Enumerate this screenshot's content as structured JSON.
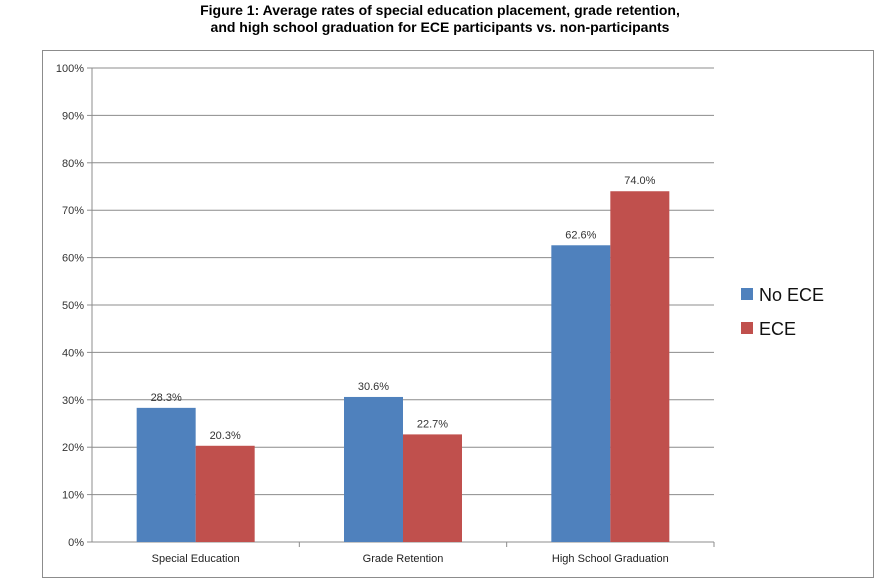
{
  "chart_data": {
    "type": "bar",
    "title_line1": "Figure 1: Average rates of special education placement, grade retention,",
    "title_line2": "and high school graduation for ECE participants vs. non-participants",
    "categories": [
      "Special Education",
      "Grade Retention",
      "High School Graduation"
    ],
    "series": [
      {
        "name": "No ECE",
        "color": "#4f81bd",
        "values": [
          28.3,
          30.6,
          62.6
        ],
        "labels": [
          "28.3%",
          "30.6%",
          "62.6%"
        ]
      },
      {
        "name": "ECE",
        "color": "#c0504d",
        "values": [
          20.3,
          22.7,
          74.0
        ],
        "labels": [
          "20.3%",
          "22.7%",
          "74.0%"
        ]
      }
    ],
    "ylim": [
      0,
      100
    ],
    "yticks": [
      0,
      10,
      20,
      30,
      40,
      50,
      60,
      70,
      80,
      90,
      100
    ],
    "ytick_labels": [
      "0%",
      "10%",
      "20%",
      "30%",
      "40%",
      "50%",
      "60%",
      "70%",
      "80%",
      "90%",
      "100%"
    ],
    "grid": true,
    "legend_position": "right"
  }
}
